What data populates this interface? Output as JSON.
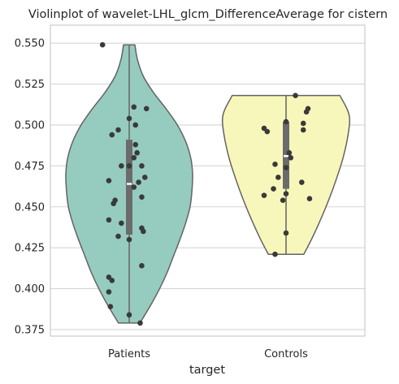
{
  "chart_data": {
    "type": "violin",
    "title": "Violinplot of wavelet-LHL_glcm_DifferenceAverage for cistern",
    "xlabel": "target",
    "ylabel": "",
    "categories": [
      "Patients",
      "Controls"
    ],
    "ylim": [
      0.371,
      0.561
    ],
    "yticks": [
      0.375,
      0.4,
      0.425,
      0.45,
      0.475,
      0.5,
      0.525,
      0.55
    ],
    "ytick_labels": [
      "0.375",
      "0.400",
      "0.425",
      "0.450",
      "0.475",
      "0.500",
      "0.525",
      "0.550"
    ],
    "grid": "horizontal",
    "violin_cut": "range",
    "colors": {
      "Patients": "#96cbc0",
      "Controls": "#f8f7bb",
      "outline": "#636363",
      "points": "#3a3a3a",
      "box": "#6b6b6b",
      "grid": "#d6d6d6",
      "axes_edge": "#cccccc"
    },
    "violins": [
      {
        "category": "Patients",
        "min": 0.379,
        "max": 0.549,
        "q1": 0.433,
        "median": 0.464,
        "q3": 0.491,
        "density_profile": [
          [
            0.379,
            0.17
          ],
          [
            0.39,
            0.34
          ],
          [
            0.4,
            0.48
          ],
          [
            0.41,
            0.6
          ],
          [
            0.42,
            0.7
          ],
          [
            0.43,
            0.8
          ],
          [
            0.44,
            0.89
          ],
          [
            0.45,
            0.96
          ],
          [
            0.46,
            0.99
          ],
          [
            0.47,
            1.0
          ],
          [
            0.48,
            0.97
          ],
          [
            0.49,
            0.89
          ],
          [
            0.5,
            0.76
          ],
          [
            0.51,
            0.58
          ],
          [
            0.52,
            0.38
          ],
          [
            0.53,
            0.22
          ],
          [
            0.54,
            0.13
          ],
          [
            0.549,
            0.09
          ]
        ],
        "points": [
          {
            "x": -0.17,
            "y": 0.549
          },
          {
            "x": 0.03,
            "y": 0.511
          },
          {
            "x": 0.11,
            "y": 0.51
          },
          {
            "x": 0.0,
            "y": 0.504
          },
          {
            "x": 0.04,
            "y": 0.5
          },
          {
            "x": -0.07,
            "y": 0.497
          },
          {
            "x": -0.11,
            "y": 0.494
          },
          {
            "x": 0.04,
            "y": 0.488
          },
          {
            "x": 0.05,
            "y": 0.483
          },
          {
            "x": 0.03,
            "y": 0.48
          },
          {
            "x": -0.05,
            "y": 0.475
          },
          {
            "x": 0.0,
            "y": 0.475
          },
          {
            "x": 0.08,
            "y": 0.475
          },
          {
            "x": 0.1,
            "y": 0.468
          },
          {
            "x": -0.13,
            "y": 0.466
          },
          {
            "x": 0.06,
            "y": 0.465
          },
          {
            "x": 0.03,
            "y": 0.462
          },
          {
            "x": 0.08,
            "y": 0.456
          },
          {
            "x": -0.09,
            "y": 0.454
          },
          {
            "x": -0.1,
            "y": 0.452
          },
          {
            "x": -0.13,
            "y": 0.442
          },
          {
            "x": 0.08,
            "y": 0.437
          },
          {
            "x": 0.09,
            "y": 0.435
          },
          {
            "x": -0.05,
            "y": 0.44
          },
          {
            "x": -0.07,
            "y": 0.432
          },
          {
            "x": 0.0,
            "y": 0.43
          },
          {
            "x": 0.08,
            "y": 0.414
          },
          {
            "x": -0.13,
            "y": 0.407
          },
          {
            "x": -0.11,
            "y": 0.405
          },
          {
            "x": -0.13,
            "y": 0.398
          },
          {
            "x": -0.12,
            "y": 0.389
          },
          {
            "x": 0.0,
            "y": 0.384
          },
          {
            "x": 0.07,
            "y": 0.379
          }
        ]
      },
      {
        "category": "Controls",
        "min": 0.421,
        "max": 0.518,
        "q1": 0.461,
        "median": 0.481,
        "q3": 0.502,
        "density_profile": [
          [
            0.421,
            0.28
          ],
          [
            0.43,
            0.4
          ],
          [
            0.44,
            0.52
          ],
          [
            0.45,
            0.63
          ],
          [
            0.46,
            0.73
          ],
          [
            0.47,
            0.82
          ],
          [
            0.48,
            0.9
          ],
          [
            0.49,
            0.96
          ],
          [
            0.5,
            1.0
          ],
          [
            0.505,
            1.0
          ],
          [
            0.51,
            0.96
          ],
          [
            0.518,
            0.85
          ]
        ],
        "points": [
          {
            "x": 0.06,
            "y": 0.518
          },
          {
            "x": 0.14,
            "y": 0.51
          },
          {
            "x": 0.13,
            "y": 0.508
          },
          {
            "x": 0.0,
            "y": 0.502
          },
          {
            "x": 0.11,
            "y": 0.501
          },
          {
            "x": -0.14,
            "y": 0.498
          },
          {
            "x": -0.12,
            "y": 0.496
          },
          {
            "x": 0.11,
            "y": 0.497
          },
          {
            "x": 0.02,
            "y": 0.483
          },
          {
            "x": 0.03,
            "y": 0.48
          },
          {
            "x": -0.07,
            "y": 0.476
          },
          {
            "x": 0.0,
            "y": 0.474
          },
          {
            "x": -0.05,
            "y": 0.468
          },
          {
            "x": 0.1,
            "y": 0.465
          },
          {
            "x": -0.08,
            "y": 0.461
          },
          {
            "x": 0.0,
            "y": 0.458
          },
          {
            "x": -0.14,
            "y": 0.457
          },
          {
            "x": 0.15,
            "y": 0.455
          },
          {
            "x": -0.02,
            "y": 0.454
          },
          {
            "x": 0.0,
            "y": 0.434
          },
          {
            "x": -0.07,
            "y": 0.421
          }
        ]
      }
    ]
  }
}
